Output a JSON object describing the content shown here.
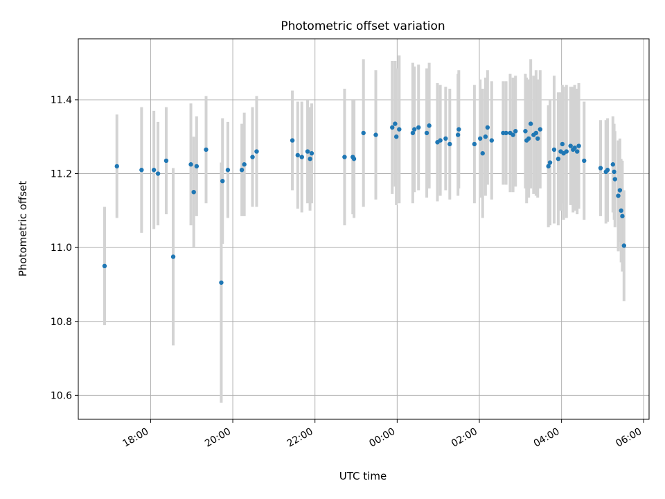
{
  "chart_data": {
    "type": "scatter",
    "title": "Photometric offset variation",
    "xlabel": "UTC time",
    "ylabel": "Photometric offset",
    "xtick_labels": [
      "18:00",
      "20:00",
      "22:00",
      "00:00",
      "02:00",
      "04:00",
      "06:00"
    ],
    "xtick_hours": [
      18,
      20,
      22,
      24,
      26,
      28,
      30
    ],
    "xlim_hours": [
      16.24,
      30.13
    ],
    "ylim": [
      10.535,
      11.565
    ],
    "yticks": [
      10.6,
      10.8,
      11.0,
      11.2,
      11.4
    ],
    "grid": true,
    "series": [
      {
        "marker_color": "#1f77b4",
        "errorbar_color": "#d3d3d3",
        "points": [
          [
            16.88,
            10.95,
            0.16
          ],
          [
            17.18,
            11.22,
            0.14
          ],
          [
            17.78,
            11.21,
            0.17
          ],
          [
            18.08,
            11.21,
            0.16
          ],
          [
            18.18,
            11.2,
            0.14
          ],
          [
            18.38,
            11.235,
            0.145
          ],
          [
            18.55,
            10.975,
            0.24
          ],
          [
            18.98,
            11.225,
            0.165
          ],
          [
            19.05,
            11.15,
            0.15
          ],
          [
            19.12,
            11.22,
            0.135
          ],
          [
            19.35,
            11.265,
            0.145
          ],
          [
            19.72,
            10.905,
            0.325
          ],
          [
            19.75,
            11.18,
            0.17
          ],
          [
            19.88,
            11.21,
            0.13
          ],
          [
            20.22,
            11.21,
            0.125
          ],
          [
            20.28,
            11.225,
            0.14
          ],
          [
            20.48,
            11.245,
            0.135
          ],
          [
            20.58,
            11.26,
            0.15
          ],
          [
            21.45,
            11.29,
            0.135
          ],
          [
            21.58,
            11.25,
            0.145
          ],
          [
            21.68,
            11.245,
            0.15
          ],
          [
            21.82,
            11.26,
            0.14
          ],
          [
            21.88,
            11.24,
            0.14
          ],
          [
            21.92,
            11.255,
            0.135
          ],
          [
            22.72,
            11.245,
            0.185
          ],
          [
            22.92,
            11.245,
            0.155
          ],
          [
            22.95,
            11.24,
            0.16
          ],
          [
            23.18,
            11.31,
            0.2
          ],
          [
            23.48,
            11.305,
            0.175
          ],
          [
            23.88,
            11.325,
            0.18
          ],
          [
            23.95,
            11.335,
            0.17
          ],
          [
            23.98,
            11.3,
            0.185
          ],
          [
            24.05,
            11.32,
            0.2
          ],
          [
            24.38,
            11.31,
            0.19
          ],
          [
            24.42,
            11.32,
            0.17
          ],
          [
            24.52,
            11.325,
            0.17
          ],
          [
            24.72,
            11.31,
            0.175
          ],
          [
            24.78,
            11.33,
            0.17
          ],
          [
            24.98,
            11.285,
            0.16
          ],
          [
            25.05,
            11.29,
            0.15
          ],
          [
            25.18,
            11.295,
            0.14
          ],
          [
            25.28,
            11.28,
            0.15
          ],
          [
            25.48,
            11.305,
            0.165
          ],
          [
            25.5,
            11.32,
            0.16
          ],
          [
            25.88,
            11.28,
            0.16
          ],
          [
            26.02,
            11.295,
            0.16
          ],
          [
            26.08,
            11.255,
            0.175
          ],
          [
            26.15,
            11.3,
            0.16
          ],
          [
            26.2,
            11.325,
            0.155
          ],
          [
            26.3,
            11.29,
            0.16
          ],
          [
            26.58,
            11.31,
            0.14
          ],
          [
            26.65,
            11.31,
            0.14
          ],
          [
            26.75,
            11.31,
            0.16
          ],
          [
            26.82,
            11.305,
            0.155
          ],
          [
            26.88,
            11.315,
            0.15
          ],
          [
            27.12,
            11.315,
            0.155
          ],
          [
            27.15,
            11.29,
            0.17
          ],
          [
            27.2,
            11.295,
            0.16
          ],
          [
            27.25,
            11.335,
            0.175
          ],
          [
            27.32,
            11.305,
            0.16
          ],
          [
            27.38,
            11.31,
            0.17
          ],
          [
            27.42,
            11.295,
            0.16
          ],
          [
            27.48,
            11.32,
            0.16
          ],
          [
            27.68,
            11.22,
            0.165
          ],
          [
            27.72,
            11.23,
            0.17
          ],
          [
            27.82,
            11.265,
            0.2
          ],
          [
            27.92,
            11.24,
            0.18
          ],
          [
            27.98,
            11.26,
            0.16
          ],
          [
            28.02,
            11.28,
            0.16
          ],
          [
            28.05,
            11.255,
            0.18
          ],
          [
            28.12,
            11.26,
            0.18
          ],
          [
            28.22,
            11.275,
            0.16
          ],
          [
            28.28,
            11.265,
            0.17
          ],
          [
            28.32,
            11.27,
            0.17
          ],
          [
            28.38,
            11.26,
            0.17
          ],
          [
            28.42,
            11.275,
            0.17
          ],
          [
            28.55,
            11.235,
            0.16
          ],
          [
            28.95,
            11.215,
            0.13
          ],
          [
            29.08,
            11.205,
            0.14
          ],
          [
            29.12,
            11.21,
            0.14
          ],
          [
            29.25,
            11.225,
            0.13
          ],
          [
            29.28,
            11.205,
            0.13
          ],
          [
            29.3,
            11.185,
            0.13
          ],
          [
            29.38,
            11.14,
            0.15
          ],
          [
            29.42,
            11.155,
            0.14
          ],
          [
            29.45,
            11.1,
            0.14
          ],
          [
            29.48,
            11.085,
            0.15
          ],
          [
            29.52,
            11.005,
            0.15
          ]
        ]
      }
    ]
  }
}
